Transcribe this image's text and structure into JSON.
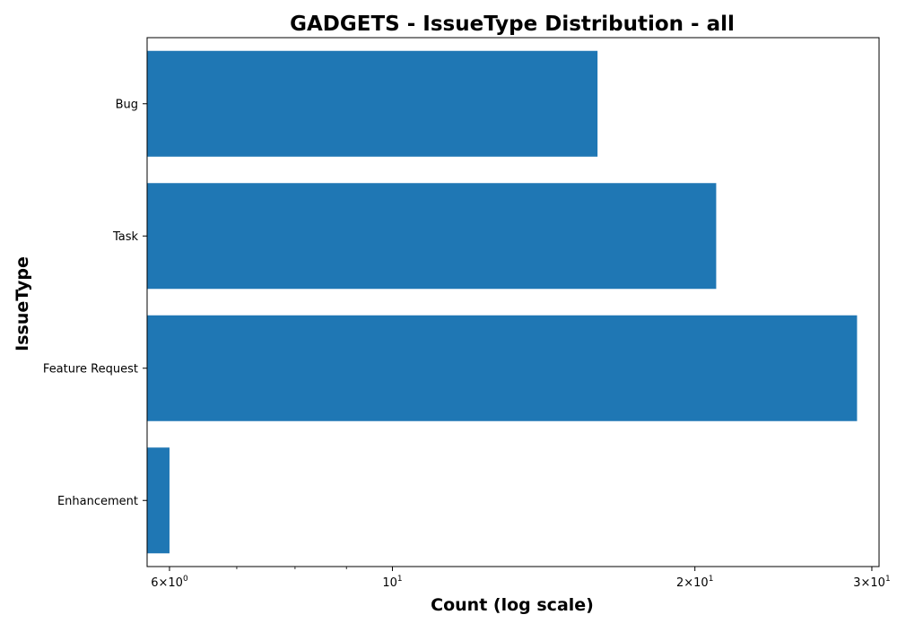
{
  "chart_data": {
    "type": "bar",
    "orientation": "horizontal",
    "title": "GADGETS - IssueType Distribution - all",
    "xlabel": "Count (log scale)",
    "ylabel": "IssueType",
    "x_scale": "log",
    "xlim": [
      5.7,
      30.5
    ],
    "categories": [
      "Bug",
      "Task",
      "Feature Request",
      "Enhancement"
    ],
    "values": [
      16,
      21,
      29,
      6
    ],
    "x_ticks": [
      {
        "value": 6,
        "mantissa": "6",
        "base": "10",
        "exp": "0"
      },
      {
        "value": 10,
        "mantissa": "",
        "base": "10",
        "exp": "1"
      },
      {
        "value": 20,
        "mantissa": "2",
        "base": "10",
        "exp": "1"
      },
      {
        "value": 30,
        "mantissa": "3",
        "base": "10",
        "exp": "1"
      }
    ],
    "bar_color": "#1f77b4",
    "grid": false,
    "legend": "none"
  }
}
